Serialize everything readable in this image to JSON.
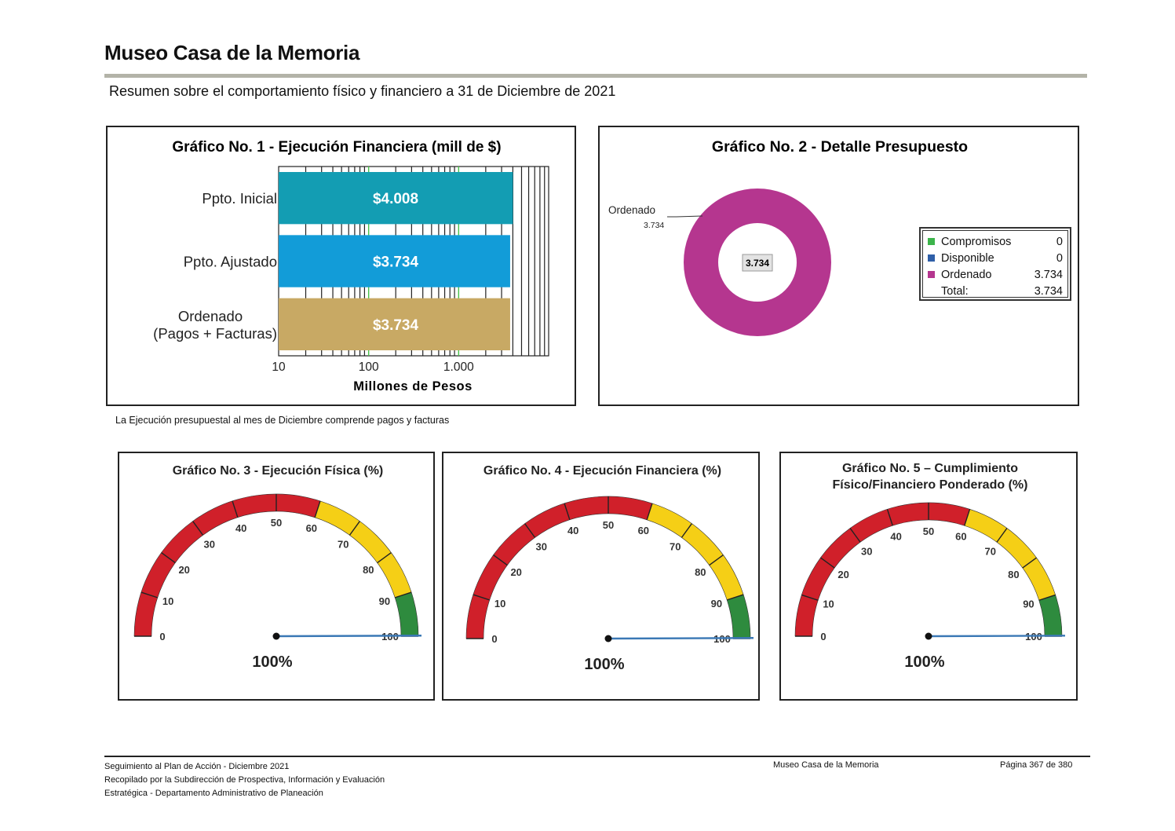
{
  "header": {
    "title": "Museo Casa de la Memoria",
    "subtitle": "Resumen sobre el comportamiento físico y financiero a 31 de Diciembre de 2021"
  },
  "note": "La Ejecución presupuestal al mes de Diciembre comprende pagos y facturas",
  "chart_data": [
    {
      "type": "bar",
      "orientation": "horizontal",
      "title": "Gráfico No. 1 - Ejecución Financiera (mill de $)",
      "xlabel": "Millones de Pesos",
      "x_scale": "log",
      "xlim": [
        10,
        10000
      ],
      "x_ticks": [
        "10",
        "100",
        "1.000"
      ],
      "categories": [
        "Ppto. Inicial",
        "Ppto. Ajustado",
        "Ordenado (Pagos + Facturas)"
      ],
      "category_lines": [
        [
          "Ppto. Inicial"
        ],
        [
          "Ppto. Ajustado"
        ],
        [
          "Ordenado",
          "(Pagos + Facturas)"
        ]
      ],
      "values": [
        4008,
        3734,
        3734
      ],
      "value_labels": [
        "$4.008",
        "$3.734",
        "$3.734"
      ],
      "colors": [
        "#139db3",
        "#129cd8",
        "#c8a964"
      ]
    },
    {
      "type": "pie",
      "style": "donut",
      "title": "Gráfico No. 2 - Detalle Presupuesto",
      "slices": [
        {
          "name": "Compromisos",
          "value": 0,
          "value_label": "0",
          "color": "#3cb44b"
        },
        {
          "name": "Disponible",
          "value": 0,
          "value_label": "0",
          "color": "#2f5fa8"
        },
        {
          "name": "Ordenado",
          "value": 3734,
          "value_label": "3.734",
          "color": "#b5368f"
        }
      ],
      "total_label": "Total:",
      "total_value": "3.734",
      "callout_name": "Ordenado",
      "callout_value": "3.734",
      "center_label": "3.734",
      "legend_position": "right"
    },
    {
      "type": "gauge",
      "title_lines": [
        "Gráfico No. 3 -  Ejecución Física (%)"
      ],
      "min": 0,
      "max": 100,
      "value": 100,
      "value_label": "100%",
      "tick_labels": [
        "0",
        "10",
        "20",
        "30",
        "40",
        "50",
        "60",
        "70",
        "80",
        "90",
        "100"
      ],
      "bands": [
        {
          "from": 0,
          "to": 60,
          "color": "#d0202a"
        },
        {
          "from": 60,
          "to": 90,
          "color": "#f5cf16"
        },
        {
          "from": 90,
          "to": 100,
          "color": "#2e8b3e"
        }
      ]
    },
    {
      "type": "gauge",
      "title_lines": [
        "Gráfico No. 4 -  Ejecución Financiera (%)"
      ],
      "min": 0,
      "max": 100,
      "value": 100,
      "value_label": "100%",
      "tick_labels": [
        "0",
        "10",
        "20",
        "30",
        "40",
        "50",
        "60",
        "70",
        "80",
        "90",
        "100"
      ],
      "bands": [
        {
          "from": 0,
          "to": 60,
          "color": "#d0202a"
        },
        {
          "from": 60,
          "to": 90,
          "color": "#f5cf16"
        },
        {
          "from": 90,
          "to": 100,
          "color": "#2e8b3e"
        }
      ]
    },
    {
      "type": "gauge",
      "title_lines": [
        "Gráfico No. 5 – Cumplimiento",
        "Físico/Financiero Ponderado (%)"
      ],
      "min": 0,
      "max": 100,
      "value": 100,
      "value_label": "100%",
      "tick_labels": [
        "0",
        "10",
        "20",
        "30",
        "40",
        "50",
        "60",
        "70",
        "80",
        "90",
        "100"
      ],
      "bands": [
        {
          "from": 0,
          "to": 60,
          "color": "#d0202a"
        },
        {
          "from": 60,
          "to": 90,
          "color": "#f5cf16"
        },
        {
          "from": 90,
          "to": 100,
          "color": "#2e8b3e"
        }
      ]
    }
  ],
  "footer": {
    "left_lines": [
      "Seguimiento al Plan de Acción - Diciembre 2021",
      "Recopilado por la Subdirección de Prospectiva, Información y Evaluación",
      "Estratégica - Departamento Administrativo de Planeación"
    ],
    "center": "Museo Casa de la Memoria",
    "right": "Página 367 de 380"
  }
}
